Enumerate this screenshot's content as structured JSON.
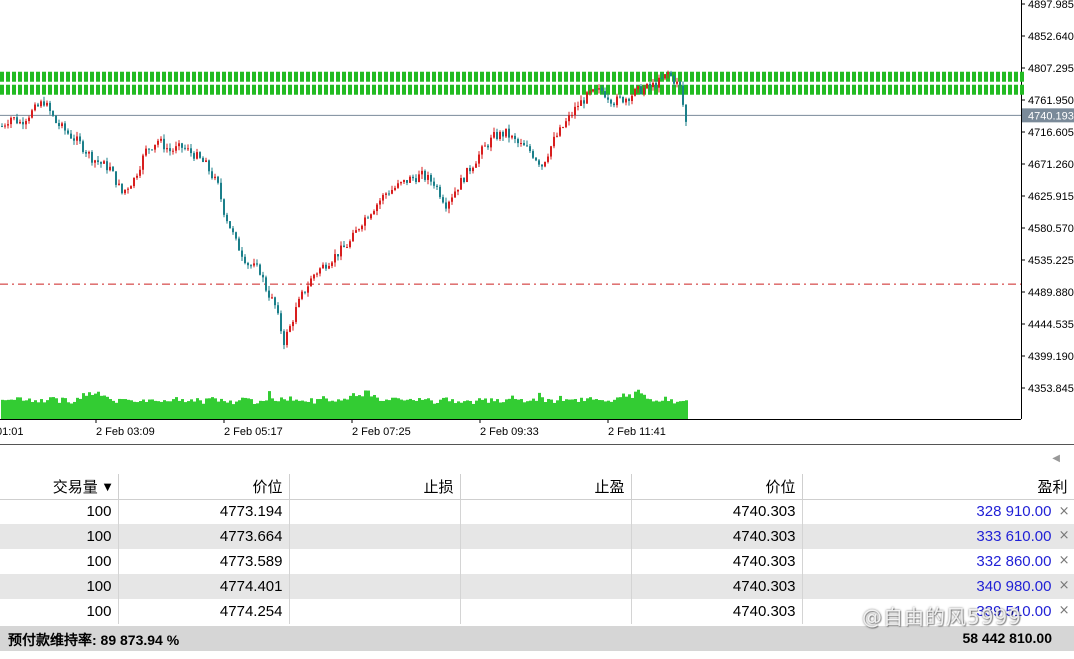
{
  "chart": {
    "y_axis_labels": [
      "4897.985",
      "4852.640",
      "4807.295",
      "4761.950",
      "4716.605",
      "4671.260",
      "4625.915",
      "4580.570",
      "4535.225",
      "4489.880",
      "4444.535",
      "4399.190",
      "4353.845"
    ],
    "current_price_label": "4740.193",
    "time_labels": [
      "01:01",
      "2 Feb 03:09",
      "2 Feb 05:17",
      "2 Feb 07:25",
      "2 Feb 09:33",
      "2 Feb 11:41"
    ],
    "colors": {
      "bull_candle": "#d81e1e",
      "bear_candle": "#1b7f8a",
      "volume": "#33cc33",
      "zone": "#22bb22",
      "dashed_line": "#cc2222",
      "price_line": "#7a8a99",
      "price_label_bg": "#7a8a99"
    }
  },
  "chart_data": {
    "type": "candlestick",
    "y_range": [
      4330,
      4910
    ],
    "price_line": 4740.193,
    "dashed_level": 4501,
    "zone_range": [
      4768,
      4802
    ],
    "key_points": [
      [
        0,
        4725
      ],
      [
        3,
        4738
      ],
      [
        6,
        4730
      ],
      [
        10,
        4745
      ],
      [
        14,
        4760
      ],
      [
        18,
        4730
      ],
      [
        22,
        4715
      ],
      [
        26,
        4700
      ],
      [
        30,
        4680
      ],
      [
        33,
        4672
      ],
      [
        36,
        4665
      ],
      [
        40,
        4630
      ],
      [
        44,
        4650
      ],
      [
        48,
        4690
      ],
      [
        52,
        4705
      ],
      [
        56,
        4690
      ],
      [
        60,
        4695
      ],
      [
        64,
        4685
      ],
      [
        68,
        4670
      ],
      [
        72,
        4640
      ],
      [
        74,
        4605
      ],
      [
        78,
        4560
      ],
      [
        82,
        4530
      ],
      [
        86,
        4520
      ],
      [
        88,
        4495
      ],
      [
        91,
        4470
      ],
      [
        94,
        4420
      ],
      [
        96,
        4440
      ],
      [
        98,
        4465
      ],
      [
        100,
        4485
      ],
      [
        104,
        4515
      ],
      [
        108,
        4530
      ],
      [
        112,
        4545
      ],
      [
        116,
        4560
      ],
      [
        120,
        4590
      ],
      [
        124,
        4610
      ],
      [
        128,
        4630
      ],
      [
        132,
        4640
      ],
      [
        136,
        4650
      ],
      [
        140,
        4655
      ],
      [
        144,
        4645
      ],
      [
        148,
        4615
      ],
      [
        152,
        4640
      ],
      [
        156,
        4665
      ],
      [
        160,
        4690
      ],
      [
        164,
        4710
      ],
      [
        168,
        4715
      ],
      [
        172,
        4700
      ],
      [
        176,
        4690
      ],
      [
        180,
        4670
      ],
      [
        184,
        4705
      ],
      [
        188,
        4730
      ],
      [
        192,
        4755
      ],
      [
        196,
        4770
      ],
      [
        200,
        4775
      ],
      [
        204,
        4760
      ],
      [
        208,
        4765
      ],
      [
        212,
        4775
      ],
      [
        216,
        4780
      ],
      [
        220,
        4790
      ],
      [
        222,
        4800
      ],
      [
        224,
        4790
      ],
      [
        226,
        4780
      ],
      [
        228,
        4730
      ]
    ],
    "volume_levels": [
      20,
      18,
      19,
      21,
      18,
      20,
      22,
      17,
      19,
      20,
      18,
      19,
      18,
      20,
      17,
      19,
      20,
      21,
      19,
      18,
      20,
      19,
      18,
      17,
      19,
      20,
      22,
      26,
      24,
      25,
      23,
      27,
      28,
      24,
      23,
      22,
      20,
      19,
      18,
      19,
      20,
      21,
      19,
      18,
      17,
      18,
      19,
      20,
      18,
      19,
      21,
      20,
      19,
      18,
      17,
      18,
      19,
      20,
      21,
      19,
      18,
      17,
      16,
      18,
      19,
      20,
      18,
      17,
      19,
      20,
      21,
      19,
      18,
      20,
      19,
      18,
      17,
      16,
      18,
      20,
      22,
      21,
      19,
      18,
      17,
      16,
      18,
      19,
      20,
      28
    ]
  },
  "table": {
    "headers": [
      "交易量",
      "价位",
      "止损",
      "止盈",
      "价位",
      "盈利"
    ],
    "rows": [
      {
        "volume": "100",
        "open_price": "4773.194",
        "sl": "",
        "tp": "",
        "current_price": "4740.303",
        "profit": "328 910.00"
      },
      {
        "volume": "100",
        "open_price": "4773.664",
        "sl": "",
        "tp": "",
        "current_price": "4740.303",
        "profit": "333 610.00"
      },
      {
        "volume": "100",
        "open_price": "4773.589",
        "sl": "",
        "tp": "",
        "current_price": "4740.303",
        "profit": "332 860.00"
      },
      {
        "volume": "100",
        "open_price": "4774.401",
        "sl": "",
        "tp": "",
        "current_price": "4740.303",
        "profit": "340 980.00"
      },
      {
        "volume": "100",
        "open_price": "4774.254",
        "sl": "",
        "tp": "",
        "current_price": "4740.303",
        "profit": "339 510.00"
      }
    ],
    "close_symbol": "×",
    "sort_icon": "triangle-down-icon"
  },
  "summary": {
    "margin_level": "预付款维持率: 89 873.94 %",
    "total_profit": "58 442 810.00"
  },
  "watermark": "@自由的风5999"
}
